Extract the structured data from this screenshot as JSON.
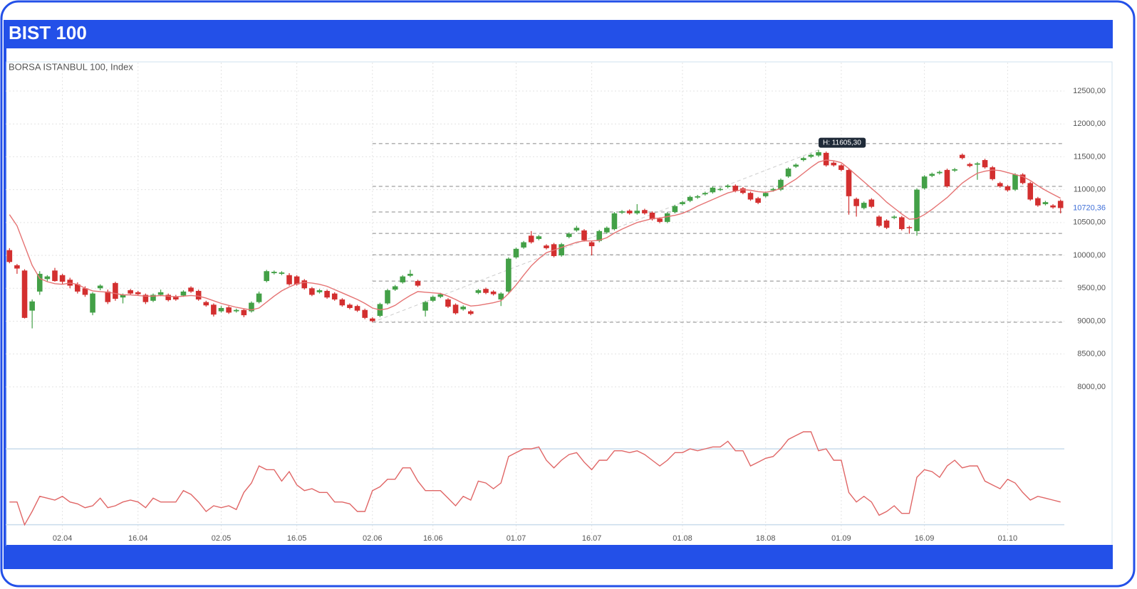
{
  "header": {
    "title": "BIST 100"
  },
  "chart_data": [
    {
      "type": "candlestick",
      "title": "BORSA ISTANBUL 100, Index",
      "categories": [
        null,
        null,
        null,
        null,
        null,
        null,
        null,
        "02.04",
        null,
        null,
        null,
        null,
        null,
        null,
        null,
        null,
        null,
        "16.04",
        null,
        null,
        null,
        null,
        null,
        null,
        null,
        null,
        null,
        null,
        "02.05",
        null,
        null,
        null,
        null,
        null,
        null,
        null,
        null,
        null,
        "16.05",
        null,
        null,
        null,
        null,
        null,
        null,
        null,
        null,
        null,
        "02.06",
        null,
        null,
        null,
        null,
        null,
        null,
        null,
        "16.06",
        null,
        null,
        null,
        null,
        null,
        null,
        null,
        null,
        null,
        null,
        "01.07",
        null,
        null,
        null,
        null,
        null,
        null,
        null,
        null,
        null,
        "16.07",
        null,
        null,
        null,
        null,
        null,
        null,
        null,
        null,
        null,
        null,
        null,
        "01.08",
        null,
        null,
        null,
        null,
        null,
        null,
        null,
        null,
        null,
        null,
        "18.08",
        null,
        null,
        null,
        null,
        null,
        null,
        null,
        null,
        null,
        "01.09",
        null,
        null,
        null,
        null,
        null,
        null,
        null,
        null,
        null,
        null,
        "16.09",
        null,
        null,
        null,
        null,
        null,
        null,
        null,
        null,
        null,
        null,
        "01.10",
        null,
        null,
        null,
        null,
        null,
        null,
        null
      ],
      "ohlc": [
        [
          10080,
          10110,
          9880,
          9900
        ],
        [
          9850,
          9870,
          9720,
          9800
        ],
        [
          9770,
          9790,
          9040,
          9050
        ],
        [
          9160,
          9330,
          8890,
          9300
        ],
        [
          9450,
          9760,
          9400,
          9720
        ],
        [
          9640,
          9700,
          9600,
          9680
        ],
        [
          9770,
          9810,
          9600,
          9610
        ],
        [
          9700,
          9720,
          9560,
          9600
        ],
        [
          9630,
          9660,
          9500,
          9540
        ],
        [
          9560,
          9590,
          9420,
          9450
        ],
        [
          9500,
          9530,
          9370,
          9400
        ],
        [
          9130,
          9440,
          9090,
          9420
        ],
        [
          9500,
          9560,
          9470,
          9540
        ],
        [
          9450,
          9480,
          9260,
          9290
        ],
        [
          9580,
          9600,
          9310,
          9340
        ],
        [
          9360,
          9420,
          9270,
          9400
        ],
        [
          9470,
          9490,
          9400,
          9420
        ],
        [
          9440,
          9460,
          9390,
          9410
        ],
        [
          9400,
          9420,
          9260,
          9290
        ],
        [
          9310,
          9420,
          9290,
          9400
        ],
        [
          9400,
          9480,
          9380,
          9440
        ],
        [
          9400,
          9420,
          9300,
          9320
        ],
        [
          9380,
          9400,
          9310,
          9330
        ],
        [
          9390,
          9470,
          9370,
          9450
        ],
        [
          9510,
          9530,
          9430,
          9450
        ],
        [
          9460,
          9480,
          9310,
          9330
        ],
        [
          9290,
          9310,
          9220,
          9240
        ],
        [
          9250,
          9270,
          9070,
          9100
        ],
        [
          9150,
          9230,
          9130,
          9200
        ],
        [
          9210,
          9230,
          9110,
          9130
        ],
        [
          9150,
          9190,
          9130,
          9170
        ],
        [
          9170,
          9190,
          9060,
          9090
        ],
        [
          9150,
          9300,
          9130,
          9280
        ],
        [
          9290,
          9450,
          9270,
          9420
        ],
        [
          9610,
          9780,
          9590,
          9760
        ],
        [
          9730,
          9770,
          9710,
          9750
        ],
        [
          9720,
          9760,
          9700,
          9740
        ],
        [
          9700,
          9730,
          9540,
          9560
        ],
        [
          9680,
          9700,
          9540,
          9560
        ],
        [
          9620,
          9640,
          9480,
          9500
        ],
        [
          9500,
          9520,
          9380,
          9400
        ],
        [
          9440,
          9490,
          9420,
          9470
        ],
        [
          9460,
          9480,
          9340,
          9360
        ],
        [
          9420,
          9440,
          9310,
          9330
        ],
        [
          9330,
          9350,
          9220,
          9240
        ],
        [
          9250,
          9270,
          9180,
          9200
        ],
        [
          9230,
          9250,
          9140,
          9160
        ],
        [
          9170,
          9190,
          9030,
          9050
        ],
        [
          9040,
          9060,
          8983,
          9000
        ],
        [
          9080,
          9280,
          9060,
          9260
        ],
        [
          9270,
          9490,
          9250,
          9470
        ],
        [
          9480,
          9550,
          9460,
          9530
        ],
        [
          9590,
          9700,
          9570,
          9680
        ],
        [
          9690,
          9780,
          9670,
          9720
        ],
        [
          9610,
          9630,
          9520,
          9540
        ],
        [
          9160,
          9310,
          9070,
          9290
        ],
        [
          9310,
          9390,
          9290,
          9370
        ],
        [
          9370,
          9430,
          9350,
          9410
        ],
        [
          9330,
          9350,
          9200,
          9220
        ],
        [
          9250,
          9270,
          9100,
          9120
        ],
        [
          9180,
          9240,
          9160,
          9220
        ],
        [
          9150,
          9170,
          9090,
          9110
        ],
        [
          9430,
          9490,
          9410,
          9470
        ],
        [
          9490,
          9510,
          9410,
          9430
        ],
        [
          9450,
          9470,
          9390,
          9410
        ],
        [
          9330,
          9440,
          9230,
          9420
        ],
        [
          9450,
          9970,
          9430,
          9950
        ],
        [
          9970,
          10120,
          9950,
          10100
        ],
        [
          10120,
          10220,
          10100,
          10200
        ],
        [
          10300,
          10370,
          10180,
          10200
        ],
        [
          10250,
          10310,
          10230,
          10290
        ],
        [
          10150,
          10170,
          10090,
          10110
        ],
        [
          10170,
          10190,
          9970,
          9990
        ],
        [
          10000,
          10190,
          9980,
          10170
        ],
        [
          10280,
          10350,
          10260,
          10330
        ],
        [
          10380,
          10450,
          10360,
          10420
        ],
        [
          10380,
          10400,
          10210,
          10230
        ],
        [
          10200,
          10220,
          10000,
          10140
        ],
        [
          10220,
          10390,
          10200,
          10370
        ],
        [
          10350,
          10440,
          10330,
          10420
        ],
        [
          10400,
          10660,
          10380,
          10640
        ],
        [
          10650,
          10690,
          10630,
          10670
        ],
        [
          10680,
          10700,
          10620,
          10640
        ],
        [
          10640,
          10780,
          10620,
          10680
        ],
        [
          10690,
          10710,
          10620,
          10640
        ],
        [
          10650,
          10670,
          10530,
          10550
        ],
        [
          10560,
          10580,
          10490,
          10510
        ],
        [
          10510,
          10660,
          10490,
          10640
        ],
        [
          10660,
          10770,
          10640,
          10750
        ],
        [
          10780,
          10830,
          10760,
          10810
        ],
        [
          10830,
          10910,
          10810,
          10890
        ],
        [
          10880,
          10920,
          10860,
          10900
        ],
        [
          10930,
          10970,
          10910,
          10950
        ],
        [
          10960,
          11050,
          10940,
          11030
        ],
        [
          11000,
          11030,
          10980,
          11010
        ],
        [
          11040,
          11080,
          11020,
          11060
        ],
        [
          11060,
          11080,
          10960,
          10980
        ],
        [
          11020,
          11040,
          10930,
          10950
        ],
        [
          10950,
          10970,
          10830,
          10850
        ],
        [
          10870,
          10890,
          10780,
          10800
        ],
        [
          10900,
          10970,
          10880,
          10950
        ],
        [
          10990,
          11030,
          10970,
          11010
        ],
        [
          11000,
          11170,
          10980,
          11150
        ],
        [
          11200,
          11340,
          11180,
          11320
        ],
        [
          11350,
          11400,
          11330,
          11380
        ],
        [
          11450,
          11500,
          11430,
          11480
        ],
        [
          11500,
          11550,
          11480,
          11530
        ],
        [
          11520,
          11605.3,
          11500,
          11570
        ],
        [
          11560,
          11580,
          11350,
          11370
        ],
        [
          11410,
          11430,
          11350,
          11370
        ],
        [
          11370,
          11390,
          11280,
          11300
        ],
        [
          11300,
          11320,
          10620,
          10900
        ],
        [
          10860,
          10880,
          10590,
          10750
        ],
        [
          10720,
          10820,
          10700,
          10800
        ],
        [
          10850,
          10870,
          10720,
          10740
        ],
        [
          10590,
          10610,
          10430,
          10450
        ],
        [
          10530,
          10550,
          10400,
          10420
        ],
        [
          10570,
          10610,
          10550,
          10590
        ],
        [
          10580,
          10600,
          10380,
          10400
        ],
        [
          10430,
          10450,
          10330,
          10420
        ],
        [
          10370,
          11020,
          10300,
          11000
        ],
        [
          11020,
          11220,
          11000,
          11200
        ],
        [
          11210,
          11260,
          11190,
          11240
        ],
        [
          11250,
          11290,
          11230,
          11270
        ],
        [
          11300,
          11320,
          11030,
          11050
        ],
        [
          11290,
          11330,
          11270,
          11310
        ],
        [
          11530,
          11550,
          11460,
          11480
        ],
        [
          11390,
          11410,
          11340,
          11360
        ],
        [
          11380,
          11420,
          11150,
          11400
        ],
        [
          11450,
          11470,
          11320,
          11340
        ],
        [
          11340,
          11360,
          11140,
          11160
        ],
        [
          11100,
          11120,
          11030,
          11050
        ],
        [
          11050,
          11070,
          10970,
          10990
        ],
        [
          11000,
          11250,
          10980,
          11230
        ],
        [
          11230,
          11250,
          11080,
          11100
        ],
        [
          11100,
          11120,
          10830,
          10850
        ],
        [
          10870,
          10890,
          10740,
          10760
        ],
        [
          10780,
          10830,
          10760,
          10810
        ],
        [
          10760,
          10780,
          10710,
          10730
        ],
        [
          10830,
          10850,
          10640,
          10720.36
        ]
      ],
      "up_color": "#43a047",
      "down_color": "#d32f2f",
      "moving_average": {
        "color": "#e57373",
        "values": [
          10620,
          10450,
          10150,
          9850,
          9650,
          9600,
          9570,
          9560,
          9580,
          9560,
          9500,
          9460,
          9450,
          9440,
          9420,
          9400,
          9400,
          9390,
          9380,
          9380,
          9390,
          9380,
          9370,
          9380,
          9390,
          9380,
          9350,
          9310,
          9270,
          9240,
          9210,
          9190,
          9170,
          9200,
          9290,
          9380,
          9460,
          9520,
          9570,
          9590,
          9580,
          9560,
          9530,
          9480,
          9430,
          9380,
          9330,
          9270,
          9200,
          9170,
          9190,
          9240,
          9320,
          9390,
          9450,
          9440,
          9430,
          9420,
          9380,
          9330,
          9270,
          9230,
          9240,
          9260,
          9280,
          9310,
          9420,
          9550,
          9700,
          9840,
          9950,
          10040,
          10080,
          10120,
          10160,
          10200,
          10220,
          10220,
          10230,
          10270,
          10340,
          10400,
          10450,
          10500,
          10530,
          10560,
          10570,
          10590,
          10610,
          10640,
          10690,
          10750,
          10800,
          10850,
          10900,
          10950,
          10980,
          11000,
          10990,
          10970,
          10960,
          10980,
          11020,
          11090,
          11160,
          11250,
          11340,
          11420,
          11450,
          11440,
          11410,
          11320,
          11220,
          11120,
          11020,
          10920,
          10810,
          10720,
          10630,
          10550,
          10560,
          10620,
          10700,
          10790,
          10880,
          10990,
          11100,
          11180,
          11250,
          11280,
          11300,
          11290,
          11260,
          11230,
          11200,
          11140,
          11060,
          10990,
          10930,
          10870
        ]
      },
      "ylim": [
        7700,
        12950
      ],
      "yticks": [
        {
          "value": 8000,
          "label": "8000,00"
        },
        {
          "value": 8500,
          "label": "8500,00"
        },
        {
          "value": 9000,
          "label": "9000,00"
        },
        {
          "value": 9500,
          "label": "9500,00"
        },
        {
          "value": 10000,
          "label": "10000,00"
        },
        {
          "value": 10500,
          "label": "10500,00"
        },
        {
          "value": 11000,
          "label": "11000,00"
        },
        {
          "value": 11500,
          "label": "11500,00"
        },
        {
          "value": 12000,
          "label": "12000,00"
        },
        {
          "value": 12500,
          "label": "12500,00"
        }
      ],
      "grid": true,
      "levels": [
        11700,
        11050,
        10660,
        10335,
        10010,
        9610,
        8983
      ],
      "trend_line": {
        "from": {
          "index": 48,
          "value": 8983
        },
        "to": {
          "index": 107,
          "value": 11605.3
        }
      },
      "high_label": {
        "value": 11605.3,
        "label": "H: 11605,30"
      },
      "last_price": {
        "value": 10720.36,
        "label": "10720,36",
        "color": "#3f6fd8"
      }
    },
    {
      "type": "line",
      "color": "#e06666",
      "ylim": [
        25,
        85
      ],
      "levels": [
        30,
        70
      ],
      "values": [
        42,
        42,
        30,
        37,
        45,
        44,
        43,
        45,
        42,
        41,
        39,
        40,
        44,
        39,
        40,
        42,
        43,
        42,
        39,
        44,
        42,
        42,
        42,
        48,
        46,
        42,
        37,
        40,
        39,
        40,
        38,
        47,
        52,
        61,
        59,
        59,
        53,
        58,
        51,
        48,
        49,
        47,
        47,
        42,
        42,
        41,
        37,
        37,
        48,
        50,
        54,
        54,
        60,
        60,
        53,
        48,
        48,
        48,
        44,
        40,
        45,
        43,
        53,
        52,
        49,
        52,
        66,
        68,
        70,
        70,
        71,
        64,
        60,
        64,
        67,
        68,
        63,
        59,
        64,
        64,
        69,
        69,
        68,
        69,
        67,
        64,
        61,
        64,
        68,
        68,
        70,
        69,
        70,
        71,
        71,
        74,
        69,
        69,
        61,
        63,
        65,
        66,
        70,
        75,
        77,
        79,
        79,
        69,
        70,
        64,
        64,
        47,
        42,
        45,
        42,
        35,
        37,
        40,
        36,
        36,
        55,
        59,
        58,
        55,
        61,
        64,
        60,
        61,
        61,
        53,
        51,
        49,
        54,
        52,
        47,
        43,
        45,
        44,
        43,
        42
      ]
    }
  ]
}
